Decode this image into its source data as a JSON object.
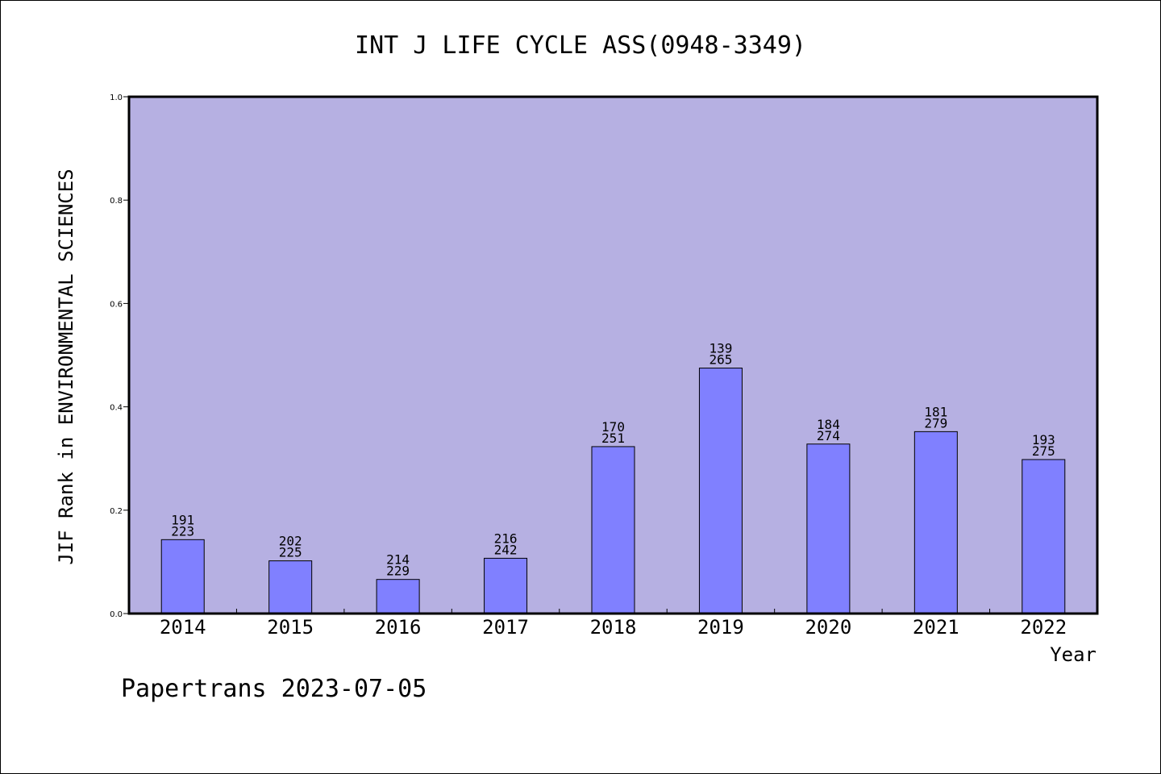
{
  "chart_data": {
    "type": "bar",
    "title": "INT J LIFE CYCLE ASS(0948-3349)",
    "xlabel": "Year",
    "ylabel": "JIF Rank in ENVIRONMENTAL SCIENCES",
    "ylim": [
      0,
      1.0
    ],
    "yticks": [
      "0.0",
      "0.2",
      "0.4",
      "0.6",
      "0.8",
      "1.0"
    ],
    "grid": false,
    "categories": [
      "2014",
      "2015",
      "2016",
      "2017",
      "2018",
      "2019",
      "2020",
      "2021",
      "2022"
    ],
    "values": [
      0.143,
      0.102,
      0.066,
      0.107,
      0.323,
      0.475,
      0.328,
      0.352,
      0.298
    ],
    "rank": [
      "191",
      "202",
      "214",
      "216",
      "170",
      "139",
      "184",
      "181",
      "193"
    ],
    "total": [
      "223",
      "225",
      "229",
      "242",
      "251",
      "265",
      "274",
      "279",
      "275"
    ],
    "colors": {
      "plot_background": "#b6b0e2",
      "bar": "#8080ff"
    }
  },
  "footer": "Papertrans 2023-07-05"
}
